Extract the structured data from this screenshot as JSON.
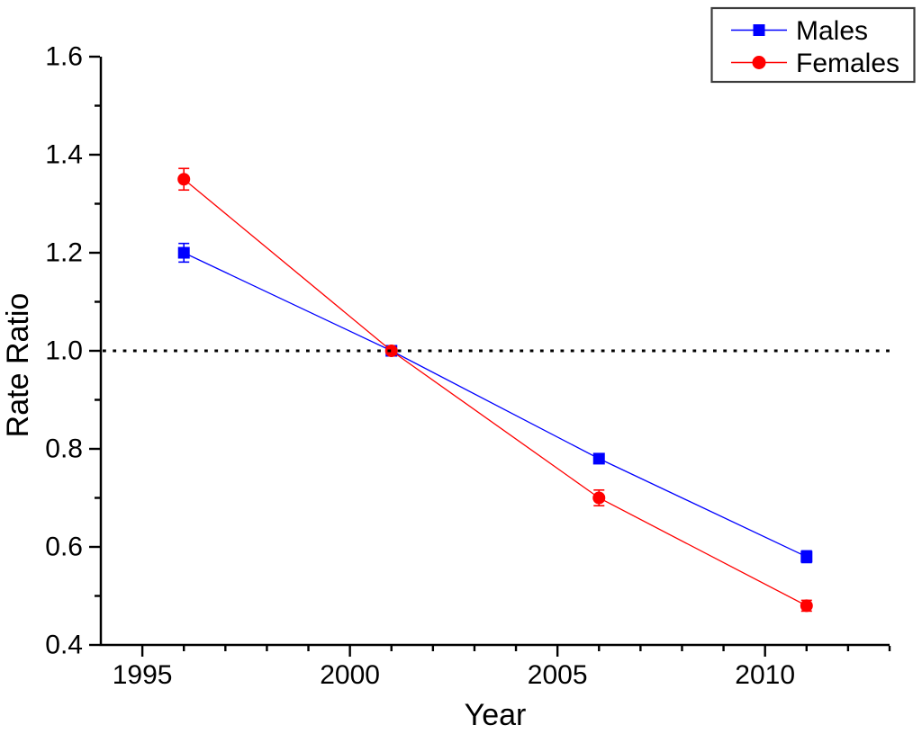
{
  "chart_data": {
    "type": "line",
    "title": "",
    "xlabel": "Year",
    "ylabel": "Rate Ratio",
    "x": [
      1996,
      2001,
      2006,
      2011
    ],
    "series": [
      {
        "name": "Males",
        "color": "#0000ff",
        "marker": "square",
        "values": [
          1.2,
          1.0,
          0.78,
          0.58
        ],
        "errors": [
          0.019,
          0.005,
          0.008,
          0.012
        ]
      },
      {
        "name": "Females",
        "color": "#ff0000",
        "marker": "circle",
        "values": [
          1.35,
          1.0,
          0.7,
          0.48
        ],
        "errors": [
          0.022,
          0.005,
          0.016,
          0.011
        ]
      }
    ],
    "xlim": [
      1994,
      2013
    ],
    "ylim": [
      0.4,
      1.6
    ],
    "x_major_ticks": [
      1995,
      2000,
      2005,
      2010
    ],
    "x_minor_tick_step": 1,
    "y_major_ticks": [
      0.4,
      0.6,
      0.8,
      1.0,
      1.2,
      1.4,
      1.6
    ],
    "y_minor_tick_step": 0.1,
    "y_label_decimals": 1,
    "reference_line": {
      "y": 1.0,
      "style": "dotted",
      "color": "#000000"
    },
    "legend": {
      "position": "top-right",
      "border_color": "#3c3c3c",
      "background": "#ffffff"
    },
    "axis_color": "#000000",
    "grid": false
  }
}
